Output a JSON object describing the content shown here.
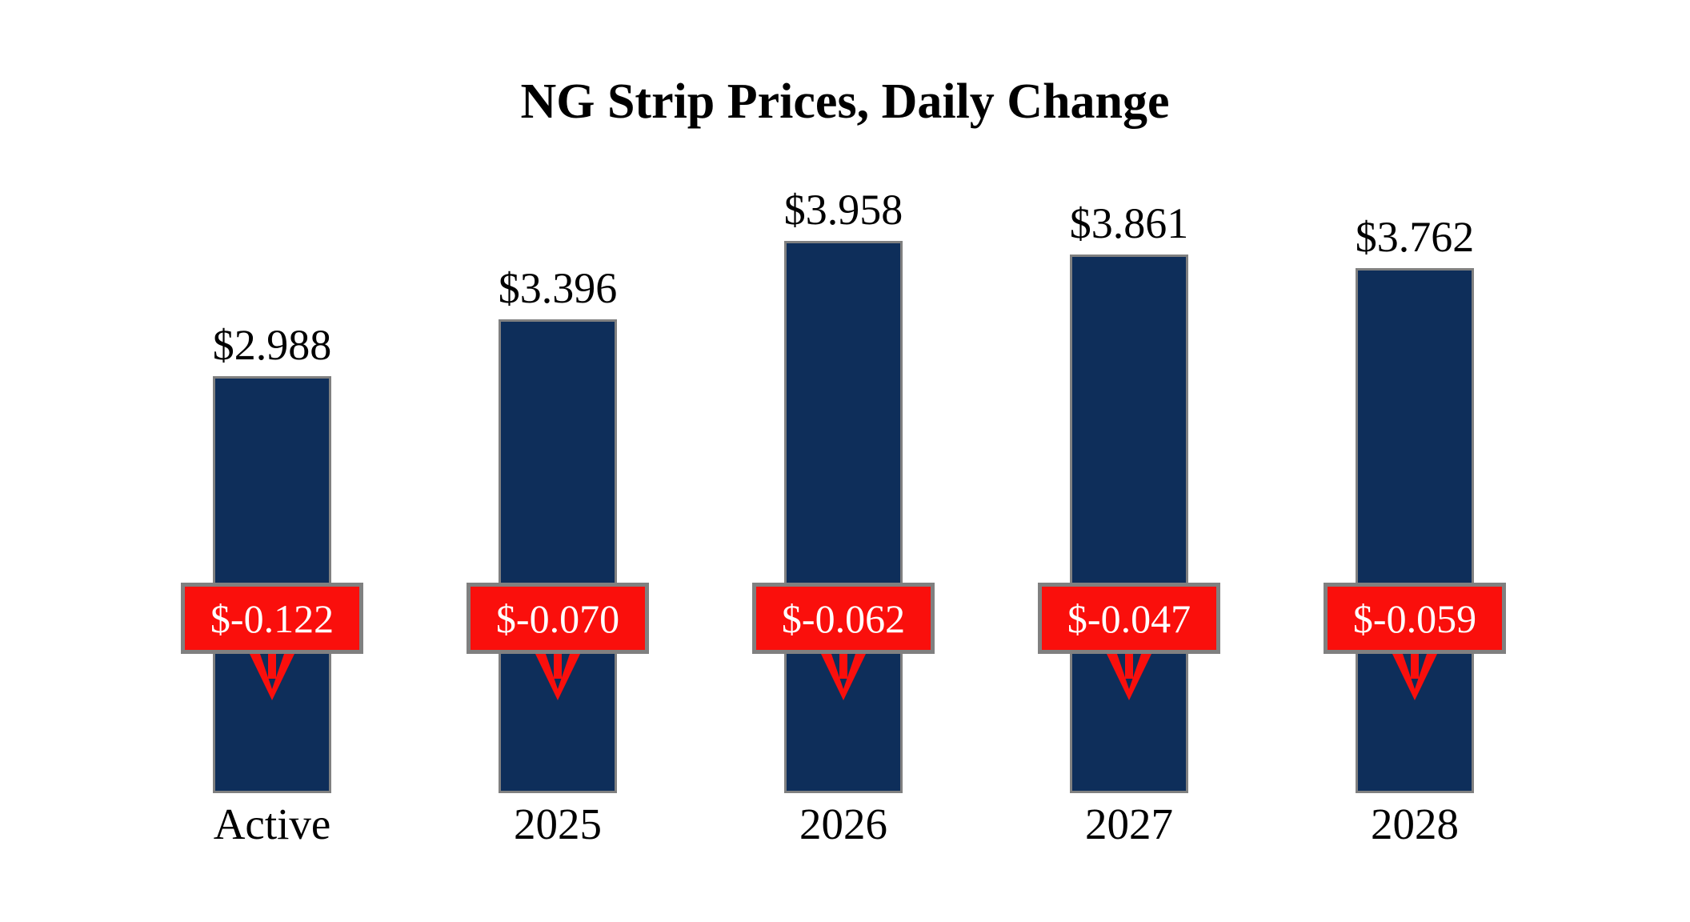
{
  "title": "NG Strip Prices, Daily Change",
  "colors": {
    "bar_fill": "#0e2e5a",
    "bar_border": "#808080",
    "badge_fill": "#fa0f0c",
    "badge_border": "#808080",
    "badge_text": "#ffffff",
    "arrow": "#fa0f0c",
    "text": "#000000",
    "background": "#ffffff"
  },
  "chart_data": {
    "type": "bar",
    "title": "NG Strip Prices, Daily Change",
    "categories": [
      "Active",
      "2025",
      "2026",
      "2027",
      "2028"
    ],
    "series": [
      {
        "name": "strip_price_usd",
        "values": [
          2.988,
          3.396,
          3.958,
          3.861,
          3.762
        ]
      },
      {
        "name": "daily_change_usd",
        "values": [
          -0.122,
          -0.07,
          -0.062,
          -0.047,
          -0.059
        ]
      }
    ],
    "value_labels": [
      "$2.988",
      "$3.396",
      "$3.958",
      "$3.861",
      "$3.762"
    ],
    "change_labels": [
      "$-0.122",
      "$-0.070",
      "$-0.062",
      "$-0.047",
      "$-0.059"
    ],
    "ylim": [
      0,
      4.2
    ],
    "grid": false,
    "legend": "none",
    "annotations": "red badge over each bar shows daily change with a red downward arrow below it"
  }
}
